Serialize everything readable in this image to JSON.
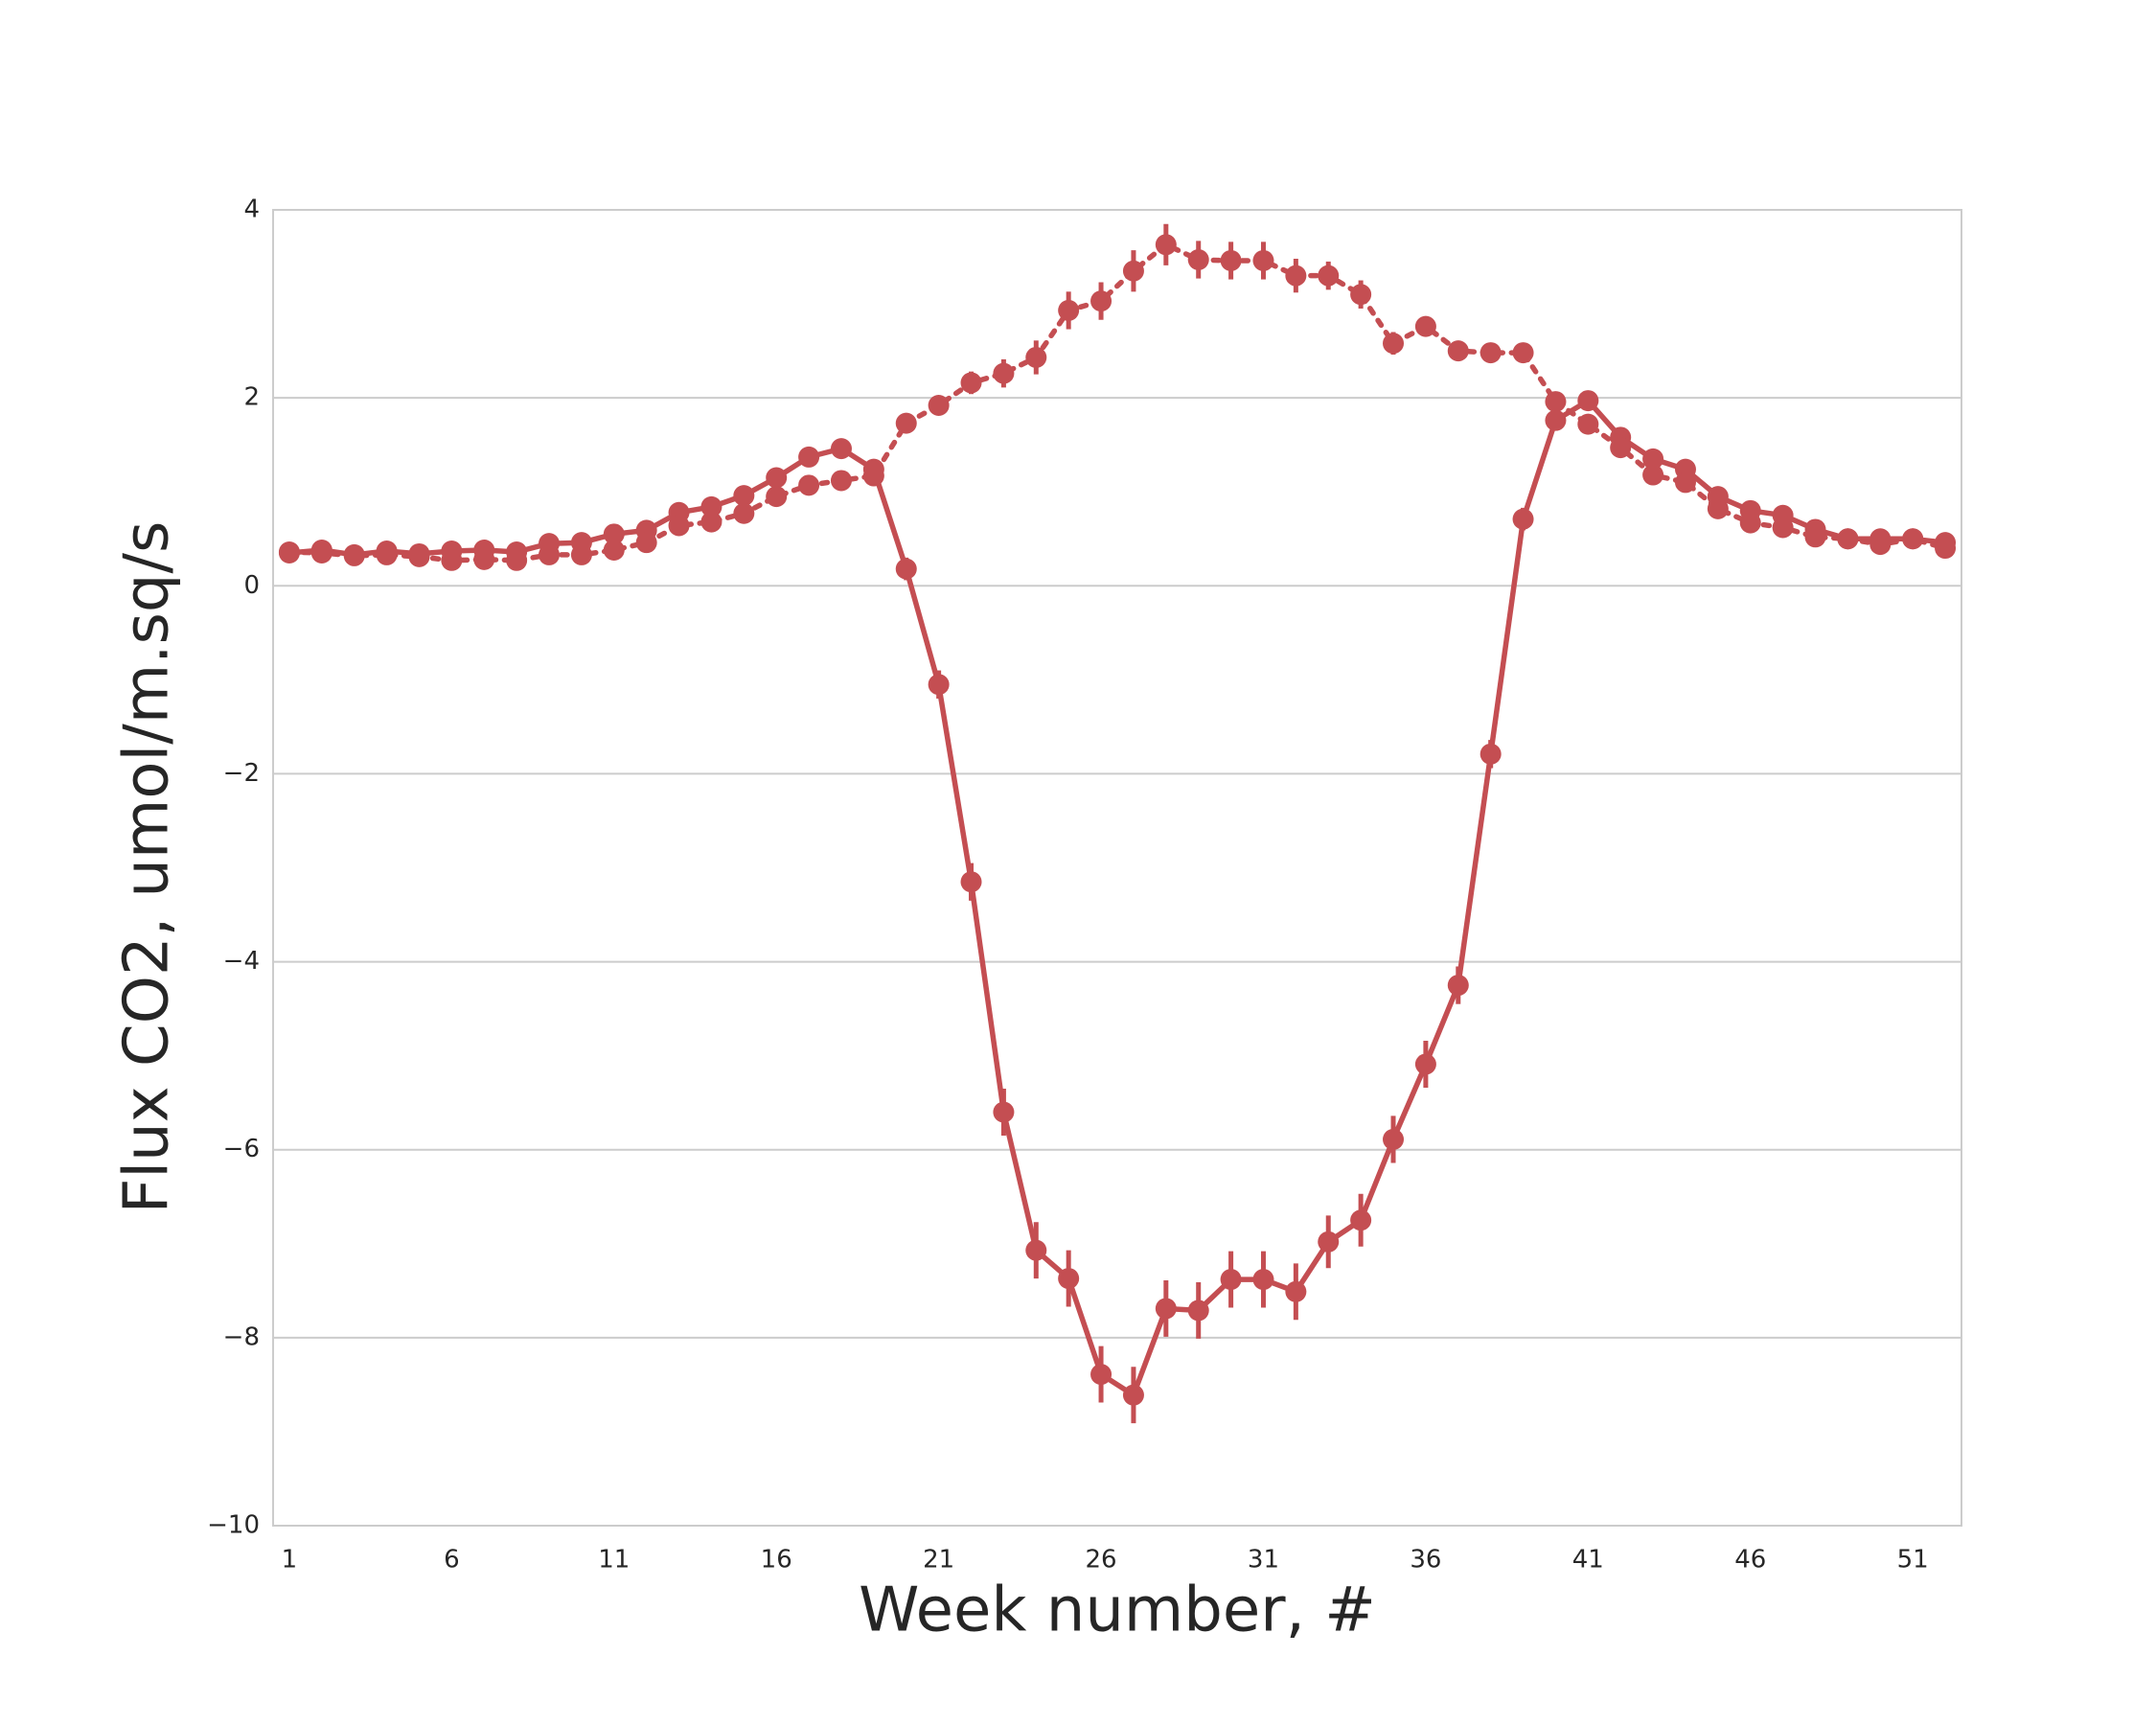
{
  "chart_data": {
    "type": "pointplot",
    "xlabel": "Week number, #",
    "ylabel": "Flux CO2, umol/m.sq/s",
    "categories": [
      1,
      null,
      null,
      null,
      null,
      6,
      null,
      null,
      null,
      null,
      11,
      null,
      null,
      null,
      null,
      16,
      null,
      null,
      null,
      null,
      21,
      null,
      null,
      null,
      null,
      26,
      null,
      null,
      null,
      null,
      31,
      null,
      null,
      null,
      null,
      36,
      null,
      null,
      null,
      null,
      41,
      null,
      null,
      null,
      null,
      46,
      null,
      null,
      null,
      null,
      51,
      null
    ],
    "ylim": [
      -10,
      4
    ],
    "yticks": [
      {
        "value": -10,
        "label": "−10"
      },
      {
        "value": -8,
        "label": "−8"
      },
      {
        "value": -6,
        "label": "−6"
      },
      {
        "value": -4,
        "label": "−4"
      },
      {
        "value": -2,
        "label": "−2"
      },
      0,
      2,
      4
    ],
    "grid": true,
    "series": [
      {
        "color": "#c44e52",
        "linestyle": "solid",
        "values": [
          0.35,
          0.38,
          0.33,
          0.37,
          0.34,
          0.37,
          0.38,
          0.36,
          0.45,
          0.46,
          0.55,
          0.59,
          0.78,
          0.84,
          0.96,
          1.15,
          1.37,
          1.46,
          1.24,
          0.18,
          -1.05,
          -3.15,
          -5.6,
          -7.07,
          -7.37,
          -8.39,
          -8.61,
          -7.69,
          -7.71,
          -7.38,
          -7.38,
          -7.51,
          -6.98,
          -6.75,
          -5.89,
          -5.09,
          -4.25,
          -1.79,
          0.71,
          1.76,
          1.97,
          1.58,
          1.35,
          1.24,
          0.95,
          0.8,
          0.75,
          0.6,
          0.5,
          0.5,
          0.5,
          0.46
        ],
        "errors": [
          0.05,
          0.05,
          0.05,
          0.05,
          0.05,
          0.05,
          0.05,
          0.05,
          0.05,
          0.05,
          0.05,
          0.06,
          0.06,
          0.06,
          0.07,
          0.07,
          0.08,
          0.08,
          0.1,
          0.12,
          0.15,
          0.2,
          0.25,
          0.3,
          0.3,
          0.3,
          0.3,
          0.3,
          0.3,
          0.3,
          0.3,
          0.3,
          0.28,
          0.28,
          0.25,
          0.25,
          0.2,
          0.15,
          0.12,
          0.1,
          0.08,
          0.08,
          0.07,
          0.07,
          0.06,
          0.06,
          0.06,
          0.05,
          0.05,
          0.05,
          0.05,
          0.05
        ]
      },
      {
        "color": "#c44e52",
        "linestyle": "dotted",
        "values": [
          0.36,
          0.35,
          0.32,
          0.33,
          0.31,
          0.27,
          0.28,
          0.27,
          0.33,
          0.33,
          0.38,
          0.46,
          0.64,
          0.68,
          0.77,
          0.95,
          1.07,
          1.12,
          1.17,
          1.73,
          1.92,
          2.16,
          2.26,
          2.43,
          2.93,
          3.03,
          3.35,
          3.63,
          3.47,
          3.46,
          3.46,
          3.3,
          3.3,
          3.1,
          2.58,
          2.76,
          2.5,
          2.48,
          2.48,
          1.96,
          1.72,
          1.47,
          1.18,
          1.1,
          0.82,
          0.67,
          0.62,
          0.52,
          0.5,
          0.44,
          0.5,
          0.4
        ],
        "errors": [
          0.05,
          0.05,
          0.05,
          0.05,
          0.05,
          0.05,
          0.05,
          0.05,
          0.05,
          0.05,
          0.05,
          0.06,
          0.06,
          0.06,
          0.07,
          0.07,
          0.08,
          0.08,
          0.08,
          0.1,
          0.1,
          0.12,
          0.15,
          0.18,
          0.2,
          0.2,
          0.22,
          0.22,
          0.2,
          0.2,
          0.2,
          0.18,
          0.15,
          0.15,
          0.12,
          0.1,
          0.08,
          0.08,
          0.08,
          0.08,
          0.08,
          0.08,
          0.08,
          0.08,
          0.07,
          0.07,
          0.07,
          0.06,
          0.05,
          0.05,
          0.05,
          0.05
        ]
      }
    ]
  }
}
